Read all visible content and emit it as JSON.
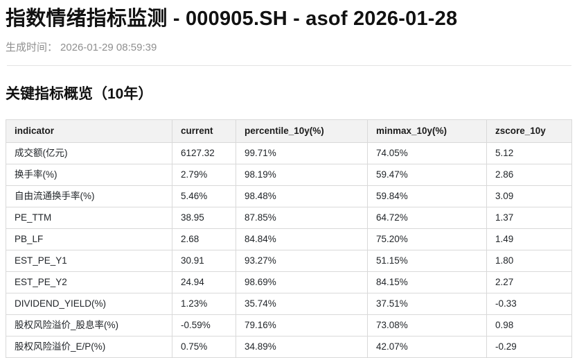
{
  "page": {
    "title": "指数情绪指标监测 - 000905.SH - asof 2026-01-28",
    "generated_label": "生成时间：",
    "generated_time": "2026-01-29 08:59:39"
  },
  "section": {
    "heading": "关键指标概览（10年）"
  },
  "table": {
    "columns": [
      "indicator",
      "current",
      "percentile_10y(%)",
      "minmax_10y(%)",
      "zscore_10y"
    ],
    "rows": [
      [
        "成交额(亿元)",
        "6127.32",
        "99.71%",
        "74.05%",
        "5.12"
      ],
      [
        "换手率(%)",
        "2.79%",
        "98.19%",
        "59.47%",
        "2.86"
      ],
      [
        "自由流通换手率(%)",
        "5.46%",
        "98.48%",
        "59.84%",
        "3.09"
      ],
      [
        "PE_TTM",
        "38.95",
        "87.85%",
        "64.72%",
        "1.37"
      ],
      [
        "PB_LF",
        "2.68",
        "84.84%",
        "75.20%",
        "1.49"
      ],
      [
        "EST_PE_Y1",
        "30.91",
        "93.27%",
        "51.15%",
        "1.80"
      ],
      [
        "EST_PE_Y2",
        "24.94",
        "98.69%",
        "84.15%",
        "2.27"
      ],
      [
        "DIVIDEND_YIELD(%)",
        "1.23%",
        "35.74%",
        "37.51%",
        "-0.33"
      ],
      [
        "股权风险溢价_股息率(%)",
        "-0.59%",
        "79.16%",
        "73.08%",
        "0.98"
      ],
      [
        "股权风险溢价_E/P(%)",
        "0.75%",
        "34.89%",
        "42.07%",
        "-0.29"
      ]
    ]
  },
  "colors": {
    "header_bg": "#f2f2f2",
    "border": "#d9d9d9",
    "muted_text": "#8f8f8f",
    "text": "#212529"
  }
}
